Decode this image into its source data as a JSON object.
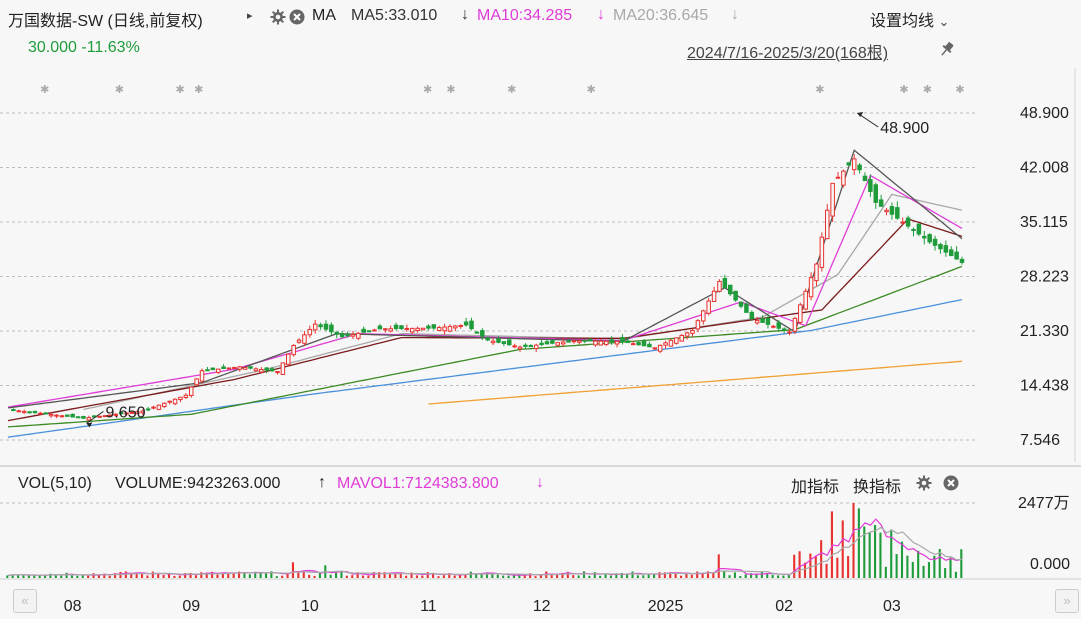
{
  "header": {
    "title": "万国数据-SW (日线,前复权)",
    "ma_label": "MA",
    "ma5": "MA5:33.010",
    "ma10": "MA10:34.285",
    "ma20": "MA20:36.645",
    "down_arrow": "↓",
    "settings_label": "设置均线",
    "settings_chevron": "⌄",
    "price_change": "30.000 -11.63%",
    "range_label": "2024/7/16-2025/3/20(168根)"
  },
  "volume_header": {
    "vol_label": "VOL(5,10)",
    "volume_value": "VOLUME:9423263.000",
    "up_arrow": "↑",
    "mavol": "MAVOL1:7124383.800",
    "down_arrow": "↓",
    "add_indicator": "加指标",
    "switch_indicator": "换指标"
  },
  "colors": {
    "up": "#e8322f",
    "down": "#1e9c3b",
    "ma5": "#555555",
    "ma10": "#e03cd8",
    "ma20": "#a8a8a8",
    "ma_a": "#7a1a1a",
    "ma_b": "#3b8a24",
    "ma_c": "#4a90d9",
    "ma_d": "#f0a030",
    "grid": "#bdbdbd"
  },
  "chart_data": {
    "type": "candlestick",
    "price_axis_ticks": [
      "48.900",
      "42.008",
      "35.115",
      "28.223",
      "21.330",
      "14.438",
      "7.546"
    ],
    "volume_axis_ticks": [
      "2477万",
      "0.000"
    ],
    "x_labels": [
      "08",
      "09",
      "10",
      "11",
      "12",
      "2025",
      "02",
      "03"
    ],
    "x_label_dates": [
      "2024-08-01",
      "2024-09-02",
      "2024-10-02",
      "2024-11-01",
      "2024-12-02",
      "2025-01-02",
      "2025-02-03",
      "2025-03-03"
    ],
    "annotations": [
      {
        "text": "48.900",
        "kind": "high",
        "date": "2025-02-20",
        "value": 48.9
      },
      {
        "text": "9.650",
        "kind": "low",
        "date": "2024-08-05",
        "value": 9.65
      }
    ],
    "ylim": [
      7.546,
      48.9
    ],
    "close_anchors": [
      [
        "2024-07-16",
        11.4
      ],
      [
        "2024-08-05",
        10.3
      ],
      [
        "2024-08-20",
        11.2
      ],
      [
        "2024-08-30",
        13.2
      ],
      [
        "2024-09-04",
        16.3
      ],
      [
        "2024-09-13",
        16.8
      ],
      [
        "2024-09-24",
        16.2
      ],
      [
        "2024-09-27",
        19.5
      ],
      [
        "2024-10-03",
        22.2
      ],
      [
        "2024-10-10",
        20.6
      ],
      [
        "2024-10-21",
        21.6
      ],
      [
        "2024-11-04",
        21.7
      ],
      [
        "2024-11-12",
        22.1
      ],
      [
        "2024-11-18",
        20.2
      ],
      [
        "2024-11-26",
        19.3
      ],
      [
        "2024-12-10",
        20.1
      ],
      [
        "2024-12-23",
        20.0
      ],
      [
        "2024-12-31",
        19.2
      ],
      [
        "2025-01-09",
        21.4
      ],
      [
        "2025-01-16",
        27.6
      ],
      [
        "2025-01-24",
        22.9
      ],
      [
        "2025-02-04",
        21.2
      ],
      [
        "2025-02-11",
        29.8
      ],
      [
        "2025-02-14",
        40.0
      ],
      [
        "2025-02-20",
        43.1
      ],
      [
        "2025-02-26",
        37.6
      ],
      [
        "2025-03-04",
        35.6
      ],
      [
        "2025-03-12",
        32.6
      ],
      [
        "2025-03-20",
        30.0
      ]
    ],
    "ma_anchors": {
      "ma5": [
        [
          "2024-07-16",
          11.6
        ],
        [
          "2024-09-04",
          14.8
        ],
        [
          "2024-10-09",
          21.0
        ],
        [
          "2024-12-23",
          20.0
        ],
        [
          "2025-01-17",
          26.8
        ],
        [
          "2025-02-05",
          21.2
        ],
        [
          "2025-02-20",
          44.2
        ],
        [
          "2025-03-20",
          33.0
        ]
      ],
      "ma10": [
        [
          "2024-07-16",
          11.7
        ],
        [
          "2024-09-12",
          16.5
        ],
        [
          "2024-10-15",
          21.0
        ],
        [
          "2024-12-23",
          20.1
        ],
        [
          "2025-01-22",
          25.0
        ],
        [
          "2025-02-07",
          22.0
        ],
        [
          "2025-02-25",
          41.0
        ],
        [
          "2025-03-20",
          34.3
        ]
      ],
      "ma20": [
        [
          "2024-08-05",
          11.4
        ],
        [
          "2024-09-20",
          16.5
        ],
        [
          "2024-10-25",
          21.0
        ],
        [
          "2024-12-23",
          20.3
        ],
        [
          "2025-01-28",
          23.1
        ],
        [
          "2025-02-17",
          28.5
        ],
        [
          "2025-03-03",
          38.6
        ],
        [
          "2025-03-20",
          36.6
        ]
      ],
      "ma_a": [
        [
          "2024-07-16",
          10.0
        ],
        [
          "2024-09-12",
          15.2
        ],
        [
          "2024-10-25",
          20.5
        ],
        [
          "2024-12-23",
          20.4
        ],
        [
          "2025-02-12",
          24.0
        ],
        [
          "2025-03-06",
          35.5
        ],
        [
          "2025-03-20",
          33.3
        ]
      ],
      "ma_b": [
        [
          "2024-07-16",
          9.2
        ],
        [
          "2024-09-02",
          10.8
        ],
        [
          "2024-11-26",
          19.0
        ],
        [
          "2025-02-05",
          21.5
        ],
        [
          "2025-03-20",
          29.5
        ]
      ],
      "ma_c": [
        [
          "2024-07-16",
          7.9
        ],
        [
          "2024-10-02",
          13.3
        ],
        [
          "2025-02-10",
          21.4
        ],
        [
          "2025-03-20",
          25.3
        ]
      ],
      "ma_d": [
        [
          "2024-11-01",
          12.1
        ],
        [
          "2025-03-20",
          17.5
        ]
      ]
    },
    "volume": {
      "max_label_value": 2477,
      "unit": "万",
      "mavol1_value": 7124383.8,
      "volume_value": 9423263.0,
      "base_level": 150,
      "spikes": [
        [
          "2024-09-27",
          520
        ],
        [
          "2024-10-07",
          420
        ],
        [
          "2025-01-16",
          780
        ],
        [
          "2025-02-12",
          1250
        ],
        [
          "2025-02-14",
          2200
        ],
        [
          "2025-02-18",
          1900
        ],
        [
          "2025-02-20",
          2477
        ],
        [
          "2025-02-21",
          2300
        ],
        [
          "2025-02-24",
          1700
        ],
        [
          "2025-02-25",
          1500
        ],
        [
          "2025-02-26",
          1750
        ],
        [
          "2025-02-27",
          1500
        ],
        [
          "2025-03-03",
          1600
        ],
        [
          "2025-03-05",
          1200
        ],
        [
          "2025-03-10",
          900
        ],
        [
          "2025-03-20",
          950
        ]
      ]
    },
    "grid": true,
    "legend": "top"
  }
}
